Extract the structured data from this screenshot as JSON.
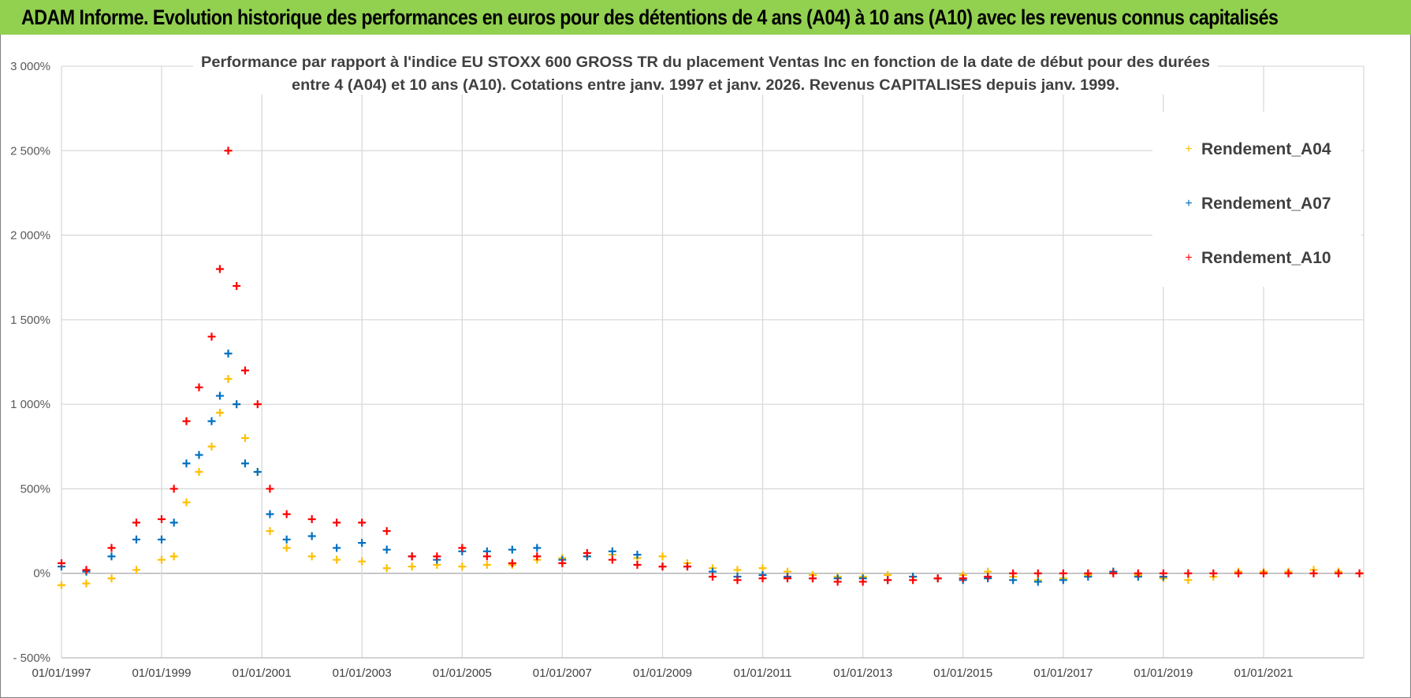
{
  "header": {
    "title": "ADAM Informe. Evolution historique des performances en euros pour des détentions de 4 ans (A04) à 10 ans (A10) avec les revenus connus capitalisés"
  },
  "chart_data": {
    "type": "scatter",
    "title_line1": "Performance par rapport à l'indice EU STOXX 600 GROSS TR  du placement Ventas Inc en fonction de la date de début pour des durées",
    "title_line2": "entre 4 (A04) et 10 ans (A10).  Cotations entre janv. 1997 et janv. 2026. Revenus CAPITALISES depuis janv. 1999.",
    "xlabel": "",
    "ylabel": "",
    "x_ticks": [
      "01/01/1997",
      "01/01/1999",
      "01/01/2001",
      "01/01/2003",
      "01/01/2005",
      "01/01/2007",
      "01/01/2009",
      "01/01/2011",
      "01/01/2013",
      "01/01/2015",
      "01/01/2017",
      "01/01/2019",
      "01/01/2021"
    ],
    "xlim": [
      "1997-01-01",
      "2023-01-01"
    ],
    "y_ticks": [
      "- 500%",
      "0%",
      "500%",
      "1 000%",
      "1 500%",
      "2 000%",
      "2 500%",
      "3 000%"
    ],
    "ylim": [
      -500,
      3000
    ],
    "grid": true,
    "legend_position": "top-right",
    "colors": {
      "A04": "#ffc000",
      "A07": "#0070c0",
      "A10": "#ff0000"
    },
    "series": [
      {
        "name": "Rendement_A04",
        "color": "#ffc000",
        "points": [
          [
            "1997-01-01",
            -70
          ],
          [
            "1997-07-01",
            -60
          ],
          [
            "1998-01-01",
            -30
          ],
          [
            "1998-07-01",
            20
          ],
          [
            "1999-01-01",
            80
          ],
          [
            "1999-04-01",
            100
          ],
          [
            "1999-07-01",
            420
          ],
          [
            "1999-10-01",
            600
          ],
          [
            "2000-01-01",
            750
          ],
          [
            "2000-03-01",
            950
          ],
          [
            "2000-05-01",
            1150
          ],
          [
            "2000-07-01",
            1000
          ],
          [
            "2000-09-01",
            800
          ],
          [
            "2000-12-01",
            600
          ],
          [
            "2001-03-01",
            250
          ],
          [
            "2001-07-01",
            150
          ],
          [
            "2002-01-01",
            100
          ],
          [
            "2002-07-01",
            80
          ],
          [
            "2003-01-01",
            70
          ],
          [
            "2003-07-01",
            30
          ],
          [
            "2004-01-01",
            40
          ],
          [
            "2004-07-01",
            50
          ],
          [
            "2005-01-01",
            40
          ],
          [
            "2005-07-01",
            50
          ],
          [
            "2006-01-01",
            50
          ],
          [
            "2006-07-01",
            80
          ],
          [
            "2007-01-01",
            90
          ],
          [
            "2007-07-01",
            100
          ],
          [
            "2008-01-01",
            110
          ],
          [
            "2008-07-01",
            90
          ],
          [
            "2009-01-01",
            100
          ],
          [
            "2009-07-01",
            60
          ],
          [
            "2010-01-01",
            30
          ],
          [
            "2010-07-01",
            20
          ],
          [
            "2011-01-01",
            30
          ],
          [
            "2011-07-01",
            10
          ],
          [
            "2012-01-01",
            -10
          ],
          [
            "2012-07-01",
            -20
          ],
          [
            "2013-01-01",
            -20
          ],
          [
            "2013-07-01",
            -10
          ],
          [
            "2014-01-01",
            -20
          ],
          [
            "2014-07-01",
            -30
          ],
          [
            "2015-01-01",
            -10
          ],
          [
            "2015-07-01",
            10
          ],
          [
            "2016-01-01",
            -20
          ],
          [
            "2016-07-01",
            -40
          ],
          [
            "2017-01-01",
            -30
          ],
          [
            "2017-07-01",
            -10
          ],
          [
            "2018-01-01",
            10
          ],
          [
            "2018-07-01",
            -10
          ],
          [
            "2019-01-01",
            -30
          ],
          [
            "2019-07-01",
            -40
          ],
          [
            "2020-01-01",
            -20
          ],
          [
            "2020-07-01",
            10
          ],
          [
            "2021-01-01",
            10
          ],
          [
            "2021-07-01",
            10
          ],
          [
            "2022-01-01",
            20
          ],
          [
            "2022-07-01",
            10
          ],
          [
            "2022-12-01",
            0
          ]
        ]
      },
      {
        "name": "Rendement_A07",
        "color": "#0070c0",
        "points": [
          [
            "1997-01-01",
            40
          ],
          [
            "1997-07-01",
            10
          ],
          [
            "1998-01-01",
            100
          ],
          [
            "1998-07-01",
            200
          ],
          [
            "1999-01-01",
            200
          ],
          [
            "1999-04-01",
            300
          ],
          [
            "1999-07-01",
            650
          ],
          [
            "1999-10-01",
            700
          ],
          [
            "2000-01-01",
            900
          ],
          [
            "2000-03-01",
            1050
          ],
          [
            "2000-05-01",
            1300
          ],
          [
            "2000-07-01",
            1000
          ],
          [
            "2000-09-01",
            650
          ],
          [
            "2000-12-01",
            600
          ],
          [
            "2001-03-01",
            350
          ],
          [
            "2001-07-01",
            200
          ],
          [
            "2002-01-01",
            220
          ],
          [
            "2002-07-01",
            150
          ],
          [
            "2003-01-01",
            180
          ],
          [
            "2003-07-01",
            140
          ],
          [
            "2004-01-01",
            100
          ],
          [
            "2004-07-01",
            80
          ],
          [
            "2005-01-01",
            130
          ],
          [
            "2005-07-01",
            130
          ],
          [
            "2006-01-01",
            140
          ],
          [
            "2006-07-01",
            150
          ],
          [
            "2007-01-01",
            80
          ],
          [
            "2007-07-01",
            100
          ],
          [
            "2008-01-01",
            130
          ],
          [
            "2008-07-01",
            110
          ],
          [
            "2009-01-01",
            40
          ],
          [
            "2009-07-01",
            40
          ],
          [
            "2010-01-01",
            10
          ],
          [
            "2010-07-01",
            -20
          ],
          [
            "2011-01-01",
            -10
          ],
          [
            "2011-07-01",
            -20
          ],
          [
            "2012-01-01",
            -30
          ],
          [
            "2012-07-01",
            -30
          ],
          [
            "2013-01-01",
            -30
          ],
          [
            "2013-07-01",
            -40
          ],
          [
            "2014-01-01",
            -20
          ],
          [
            "2014-07-01",
            -30
          ],
          [
            "2015-01-01",
            -40
          ],
          [
            "2015-07-01",
            -30
          ],
          [
            "2016-01-01",
            -40
          ],
          [
            "2016-07-01",
            -50
          ],
          [
            "2017-01-01",
            -40
          ],
          [
            "2017-07-01",
            -20
          ],
          [
            "2018-01-01",
            10
          ],
          [
            "2018-07-01",
            -20
          ],
          [
            "2019-01-01",
            -20
          ]
        ]
      },
      {
        "name": "Rendement_A10",
        "color": "#ff0000",
        "points": [
          [
            "1997-01-01",
            60
          ],
          [
            "1997-07-01",
            20
          ],
          [
            "1998-01-01",
            150
          ],
          [
            "1998-07-01",
            300
          ],
          [
            "1999-01-01",
            320
          ],
          [
            "1999-04-01",
            500
          ],
          [
            "1999-07-01",
            900
          ],
          [
            "1999-10-01",
            1100
          ],
          [
            "2000-01-01",
            1400
          ],
          [
            "2000-03-01",
            1800
          ],
          [
            "2000-05-01",
            2500
          ],
          [
            "2000-07-01",
            1700
          ],
          [
            "2000-09-01",
            1200
          ],
          [
            "2000-12-01",
            1000
          ],
          [
            "2001-03-01",
            500
          ],
          [
            "2001-07-01",
            350
          ],
          [
            "2002-01-01",
            320
          ],
          [
            "2002-07-01",
            300
          ],
          [
            "2003-01-01",
            300
          ],
          [
            "2003-07-01",
            250
          ],
          [
            "2004-01-01",
            100
          ],
          [
            "2004-07-01",
            100
          ],
          [
            "2005-01-01",
            150
          ],
          [
            "2005-07-01",
            100
          ],
          [
            "2006-01-01",
            60
          ],
          [
            "2006-07-01",
            100
          ],
          [
            "2007-01-01",
            60
          ],
          [
            "2007-07-01",
            120
          ],
          [
            "2008-01-01",
            80
          ],
          [
            "2008-07-01",
            50
          ],
          [
            "2009-01-01",
            40
          ],
          [
            "2009-07-01",
            40
          ],
          [
            "2010-01-01",
            -20
          ],
          [
            "2010-07-01",
            -40
          ],
          [
            "2011-01-01",
            -30
          ],
          [
            "2011-07-01",
            -30
          ],
          [
            "2012-01-01",
            -30
          ],
          [
            "2012-07-01",
            -50
          ],
          [
            "2013-01-01",
            -50
          ],
          [
            "2013-07-01",
            -40
          ],
          [
            "2014-01-01",
            -40
          ],
          [
            "2014-07-01",
            -30
          ],
          [
            "2015-01-01",
            -30
          ],
          [
            "2015-07-01",
            -20
          ],
          [
            "2016-01-01",
            0
          ],
          [
            "2016-07-01",
            0
          ],
          [
            "2017-01-01",
            0
          ],
          [
            "2017-07-01",
            0
          ],
          [
            "2018-01-01",
            0
          ],
          [
            "2018-07-01",
            0
          ],
          [
            "2019-01-01",
            0
          ],
          [
            "2019-07-01",
            0
          ],
          [
            "2020-01-01",
            0
          ],
          [
            "2020-07-01",
            0
          ],
          [
            "2021-01-01",
            0
          ],
          [
            "2021-07-01",
            0
          ],
          [
            "2022-01-01",
            0
          ],
          [
            "2022-07-01",
            0
          ],
          [
            "2022-12-01",
            0
          ]
        ]
      }
    ]
  }
}
